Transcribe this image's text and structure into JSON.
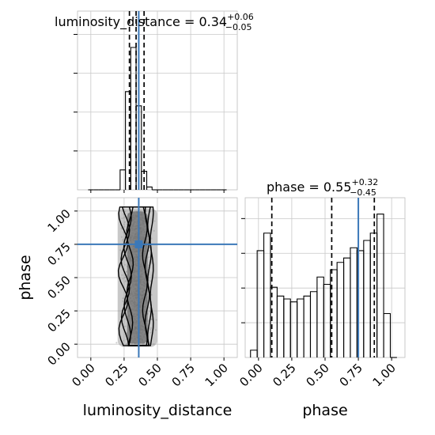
{
  "chart_data": [
    {
      "type": "histogram",
      "panel": "luminosity_distance",
      "title": {
        "param": "luminosity_distance",
        "median": "0.34",
        "upper": "+0.06",
        "lower": "−0.05"
      },
      "xlim": [
        -0.1,
        1.1
      ],
      "bin_edges": [
        -0.02,
        0.02,
        0.06,
        0.1,
        0.14,
        0.18,
        0.22,
        0.26,
        0.3,
        0.34,
        0.38,
        0.42,
        0.46,
        0.5,
        0.54,
        0.58,
        0.62,
        0.66,
        0.7,
        0.74,
        0.78,
        0.82,
        0.86,
        0.9,
        0.94,
        0.98,
        1.02
      ],
      "counts": [
        0,
        0,
        0,
        0,
        0,
        0,
        0.14,
        0.69,
        1.0,
        0.59,
        0.13,
        0.02,
        0,
        0,
        0,
        0,
        0,
        0,
        0,
        0,
        0,
        0,
        0,
        0,
        0,
        0
      ],
      "quantile_lines": [
        0.29,
        0.34,
        0.4
      ],
      "truth": 0.36,
      "grid": true
    },
    {
      "type": "scatter",
      "panel": "luminosity_distance-phase",
      "xlabel": "luminosity_distance",
      "ylabel": "phase",
      "xlim": [
        -0.1,
        1.1
      ],
      "ylim": [
        -0.1,
        1.1
      ],
      "xticks": [
        "0.00",
        "0.25",
        "0.50",
        "0.75",
        "1.00"
      ],
      "yticks": [
        "0.00",
        "0.25",
        "0.50",
        "0.75",
        "1.00"
      ],
      "samples": {
        "x_center": 0.35,
        "x_sigma": 0.045,
        "y_range": [
          0.0,
          1.0
        ]
      },
      "contour_levels": [
        0.5,
        1.0,
        1.5,
        2.0
      ],
      "truth": {
        "x": 0.36,
        "y": 0.75
      },
      "grid": true
    },
    {
      "type": "histogram",
      "panel": "phase",
      "title": {
        "param": "phase",
        "median": "0.55",
        "upper": "+0.32",
        "lower": "−0.45"
      },
      "xlabel": "phase",
      "xlim": [
        -0.1,
        1.1
      ],
      "xticks": [
        "0.00",
        "0.25",
        "0.50",
        "0.75",
        "1.00"
      ],
      "bin_edges": [
        -0.06,
        -0.01,
        0.04,
        0.09,
        0.14,
        0.19,
        0.24,
        0.29,
        0.34,
        0.39,
        0.44,
        0.49,
        0.54,
        0.59,
        0.64,
        0.69,
        0.74,
        0.79,
        0.84,
        0.89,
        0.94,
        0.99,
        1.04
      ],
      "counts": [
        0.05,
        0.73,
        0.85,
        0.48,
        0.42,
        0.4,
        0.38,
        0.4,
        0.42,
        0.45,
        0.55,
        0.5,
        0.6,
        0.65,
        0.68,
        0.75,
        0.73,
        0.8,
        0.85,
        0.98,
        0.3,
        0.0
      ],
      "quantile_lines": [
        0.1,
        0.55,
        0.87
      ],
      "truth": 0.75,
      "grid": true
    }
  ],
  "colors": {
    "truth": "#3b78b8",
    "hist": "#000000",
    "grid": "#c8c8c8",
    "points": "#555555"
  }
}
